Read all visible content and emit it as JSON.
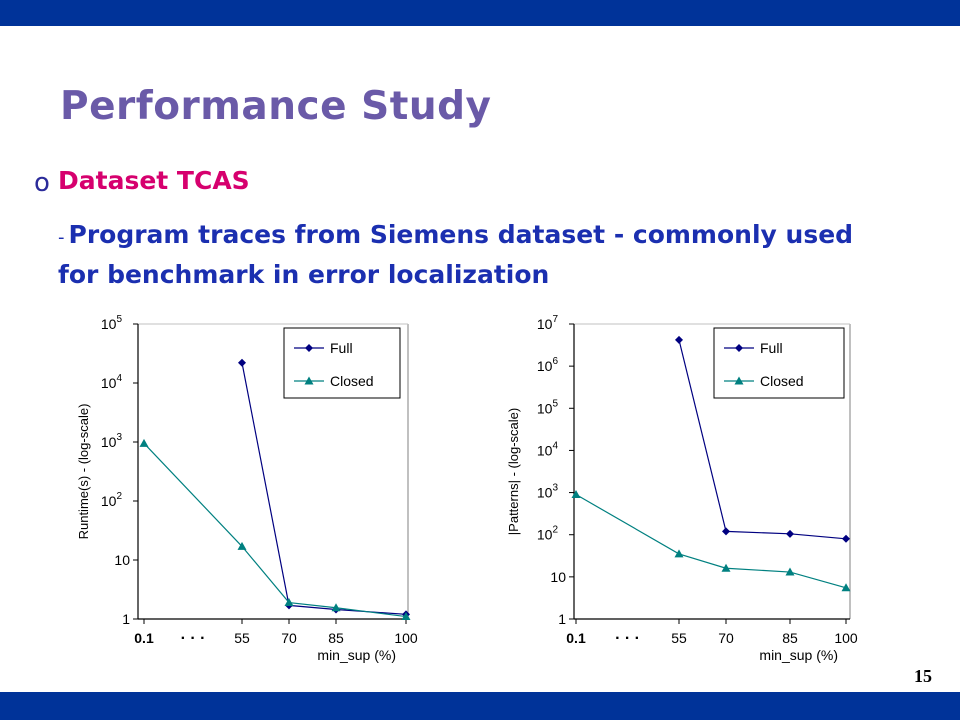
{
  "slide": {
    "title": "Performance Study",
    "bullet_marker": "o",
    "bullet": "Dataset TCAS",
    "sub_dash": "-",
    "sub_text": "Program traces from Siemens dataset - commonly used for benchmark in error localization",
    "page_number": "15"
  },
  "colors": {
    "bar": "#003399",
    "full": "#000080",
    "closed": "#008080"
  },
  "chart_data": [
    {
      "type": "line",
      "yscale": "log",
      "ylabel": "Runtime(s) - (log-scale)",
      "xlabel": "min_sup (%)",
      "categories": [
        "0.1",
        "55",
        "70",
        "85",
        "100"
      ],
      "x_ellipsis": "· · ·",
      "y_ticks": [
        {
          "value": 1,
          "base": "1",
          "exp": ""
        },
        {
          "value": 10,
          "base": "10",
          "exp": ""
        },
        {
          "value": 100,
          "base": "10",
          "exp": "2"
        },
        {
          "value": 1000,
          "base": "10",
          "exp": "3"
        },
        {
          "value": 10000,
          "base": "10",
          "exp": "4"
        },
        {
          "value": 100000,
          "base": "10",
          "exp": "5"
        }
      ],
      "ylim": [
        1,
        100000
      ],
      "legend_position": "top-right",
      "series": [
        {
          "name": "Full",
          "marker": "diamond",
          "values": [
            null,
            22000,
            1.7,
            1.45,
            1.2
          ]
        },
        {
          "name": "Closed",
          "marker": "triangle",
          "values": [
            950,
            17,
            1.9,
            1.55,
            1.1
          ]
        }
      ]
    },
    {
      "type": "line",
      "yscale": "log",
      "ylabel": "|Patterns| - (log-scale)",
      "xlabel": "min_sup (%)",
      "categories": [
        "0.1",
        "55",
        "70",
        "85",
        "100"
      ],
      "x_ellipsis": "· · ·",
      "y_ticks": [
        {
          "value": 1,
          "base": "1",
          "exp": ""
        },
        {
          "value": 10,
          "base": "10",
          "exp": ""
        },
        {
          "value": 100,
          "base": "10",
          "exp": "2"
        },
        {
          "value": 1000,
          "base": "10",
          "exp": "3"
        },
        {
          "value": 10000,
          "base": "10",
          "exp": "4"
        },
        {
          "value": 100000,
          "base": "10",
          "exp": "5"
        },
        {
          "value": 1000000,
          "base": "10",
          "exp": "6"
        },
        {
          "value": 10000000,
          "base": "10",
          "exp": "7"
        }
      ],
      "ylim": [
        1,
        10000000
      ],
      "legend_position": "top-right",
      "series": [
        {
          "name": "Full",
          "marker": "diamond",
          "values": [
            null,
            4200000,
            120,
            105,
            80
          ]
        },
        {
          "name": "Closed",
          "marker": "triangle",
          "values": [
            900,
            35,
            16,
            13,
            5.5
          ]
        }
      ]
    }
  ]
}
